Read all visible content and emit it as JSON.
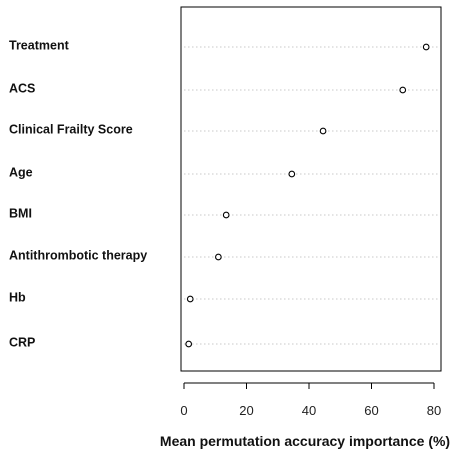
{
  "chart_data": {
    "type": "scatter",
    "title": "",
    "xlabel": "Mean permutation accuracy importance (%)",
    "ylabel": "",
    "xlim": [
      -1,
      80
    ],
    "xticks": [
      0,
      20,
      40,
      60,
      80
    ],
    "grid": "horizontal dotted",
    "categories": [
      "Treatment",
      "ACS",
      "Clinical Frailty Score",
      "Age",
      "BMI",
      "Antithrombotic therapy",
      "Hb",
      "CRP"
    ],
    "values": [
      77.5,
      70,
      44.5,
      34.5,
      13.5,
      11,
      2,
      1.5
    ]
  }
}
